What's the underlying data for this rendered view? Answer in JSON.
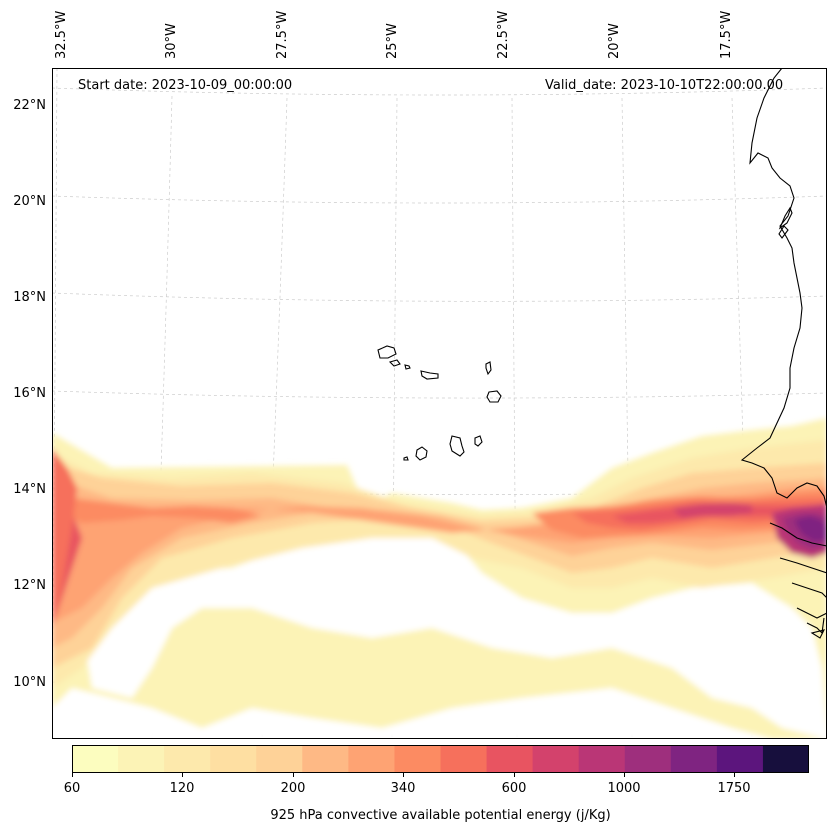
{
  "map": {
    "start_date": "Start date: 2023-10-09_00:00:00",
    "valid_date": "Valid_date: 2023-10-10T22:00:00.00",
    "lon_labels": [
      "32.5°W",
      "30°W",
      "27.5°W",
      "25°W",
      "22.5°W",
      "20°W",
      "17.5°W"
    ],
    "lat_labels": [
      "22°N",
      "20°N",
      "18°N",
      "16°N",
      "14°N",
      "12°N",
      "10°N"
    ]
  },
  "colorbar": {
    "label": "925 hPa convective available potential energy (j/Kg)",
    "tick_labels": [
      "60",
      "120",
      "200",
      "340",
      "600",
      "1000",
      "1750"
    ],
    "colors": [
      "#fcfdbf",
      "#fcf3b6",
      "#fde9ac",
      "#fedfa2",
      "#fed298",
      "#feb985",
      "#fea373",
      "#fc8b62",
      "#f6705c",
      "#e85461",
      "#d3426c",
      "#ba3676",
      "#9e2f7d",
      "#7f2481",
      "#5c157d",
      "#170f3d"
    ]
  },
  "colors": {
    "coast": "#000000",
    "grid": "#cccccc"
  }
}
